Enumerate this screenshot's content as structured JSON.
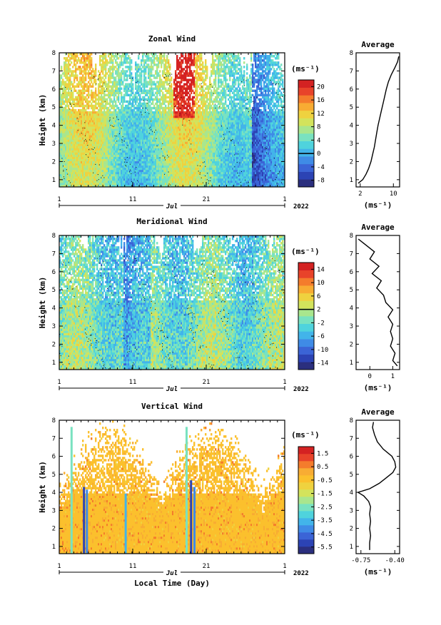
{
  "chart_data": [
    {
      "type": "heatmap",
      "title": "Zonal Wind",
      "ylabel": "Height (km)",
      "xlabel": "",
      "x_ticks": [
        "1",
        "11",
        "21",
        "1"
      ],
      "month_label": "Jul",
      "year_label": "2022",
      "y_ticks": [
        "1",
        "2",
        "3",
        "4",
        "5",
        "6",
        "7",
        "8"
      ],
      "ylim": [
        0.6,
        8
      ],
      "colorbar_unit": "(ms⁻¹)",
      "colorbar_ticks": [
        "20",
        "16",
        "12",
        "8",
        "4",
        "0",
        "-4",
        "-8"
      ],
      "colorbar_range": [
        -10,
        22
      ],
      "colors": [
        "#2b2f7e",
        "#2c43b4",
        "#3b64d6",
        "#3f8be6",
        "#42b4ea",
        "#4fd3dd",
        "#79e2c0",
        "#a9e68d",
        "#d3e35c",
        "#efd23f",
        "#f8ac33",
        "#f47c2c",
        "#e8432a",
        "#d42222"
      ],
      "average": {
        "title": "Average",
        "xlabel": "(ms⁻¹)",
        "x_ticks": [
          "2",
          "10"
        ],
        "xlim": [
          1,
          11.5
        ],
        "height": [
          0.8,
          1.0,
          1.3,
          1.6,
          2.0,
          2.4,
          2.8,
          3.2,
          3.6,
          4.0,
          4.4,
          4.8,
          5.2,
          5.6,
          6.0,
          6.4,
          6.8,
          7.2,
          7.5,
          7.8
        ],
        "value": [
          1.5,
          2.6,
          3.4,
          4.0,
          4.6,
          5.0,
          5.4,
          5.7,
          6.0,
          6.3,
          6.7,
          7.1,
          7.5,
          7.9,
          8.3,
          8.8,
          9.5,
          10.4,
          11.0,
          11.3
        ]
      }
    },
    {
      "type": "heatmap",
      "title": "Meridional Wind",
      "ylabel": "Height (km)",
      "xlabel": "",
      "x_ticks": [
        "1",
        "11",
        "21",
        "1"
      ],
      "month_label": "Jul",
      "year_label": "2022",
      "y_ticks": [
        "1",
        "2",
        "3",
        "4",
        "5",
        "6",
        "7",
        "8"
      ],
      "ylim": [
        0.6,
        8
      ],
      "colorbar_unit": "(ms⁻¹)",
      "colorbar_ticks": [
        "14",
        "10",
        "6",
        "2",
        "-2",
        "-6",
        "-10",
        "-14"
      ],
      "colorbar_range": [
        -16,
        16
      ],
      "colors": [
        "#2b2f7e",
        "#2c43b4",
        "#3b64d6",
        "#3f8be6",
        "#42b4ea",
        "#4fd3dd",
        "#79e2c0",
        "#a9e68d",
        "#d3e35c",
        "#efd23f",
        "#f8ac33",
        "#f47c2c",
        "#e8432a",
        "#d42222"
      ],
      "average": {
        "title": "Average",
        "xlabel": "(ms⁻¹)",
        "x_ticks": [
          "0",
          "1"
        ],
        "xlim": [
          -0.6,
          1.3
        ],
        "height": [
          0.8,
          1.1,
          1.5,
          1.9,
          2.3,
          2.7,
          3.1,
          3.5,
          3.9,
          4.3,
          4.7,
          5.1,
          5.5,
          5.9,
          6.3,
          6.7,
          7.1,
          7.5,
          7.8
        ],
        "value": [
          1.2,
          1.0,
          1.1,
          0.9,
          1.0,
          0.9,
          1.0,
          0.8,
          1.0,
          0.7,
          0.6,
          0.3,
          0.5,
          0.1,
          0.4,
          0.0,
          0.2,
          -0.2,
          -0.5
        ]
      }
    },
    {
      "type": "heatmap",
      "title": "Vertical Wind",
      "ylabel": "Height (km)",
      "xlabel": "Local Time (Day)",
      "x_ticks": [
        "1",
        "11",
        "21",
        "1"
      ],
      "month_label": "Jul",
      "year_label": "2022",
      "y_ticks": [
        "1",
        "2",
        "3",
        "4",
        "5",
        "6",
        "7",
        "8"
      ],
      "ylim": [
        0.6,
        8
      ],
      "colorbar_unit": "(ms⁻¹)",
      "colorbar_ticks": [
        "1.5",
        "0.5",
        "-0.5",
        "-1.5",
        "-2.5",
        "-3.5",
        "-4.5",
        "-5.5"
      ],
      "colorbar_range": [
        -6,
        2
      ],
      "colors": [
        "#2b2f7e",
        "#2c43b4",
        "#3b64d6",
        "#3f8be6",
        "#42b4ea",
        "#4fd3dd",
        "#79e2c0",
        "#a9e68d",
        "#d3e35c",
        "#efd23f",
        "#fbc02d",
        "#f8ac33",
        "#f47c2c",
        "#e8432a",
        "#d42222"
      ],
      "average": {
        "title": "Average",
        "xlabel": "(ms⁻¹)",
        "x_ticks": [
          "-0.75",
          "-0.40"
        ],
        "xlim": [
          -0.8,
          -0.35
        ],
        "height": [
          0.8,
          1.2,
          1.6,
          2.0,
          2.4,
          2.8,
          3.2,
          3.5,
          3.8,
          4.0,
          4.2,
          4.5,
          4.8,
          5.1,
          5.4,
          5.7,
          6.0,
          6.4,
          6.8,
          7.2,
          7.6,
          7.9
        ],
        "value": [
          -0.66,
          -0.66,
          -0.65,
          -0.66,
          -0.65,
          -0.66,
          -0.65,
          -0.67,
          -0.72,
          -0.78,
          -0.66,
          -0.56,
          -0.49,
          -0.42,
          -0.39,
          -0.4,
          -0.43,
          -0.52,
          -0.58,
          -0.61,
          -0.63,
          -0.62
        ]
      }
    }
  ]
}
